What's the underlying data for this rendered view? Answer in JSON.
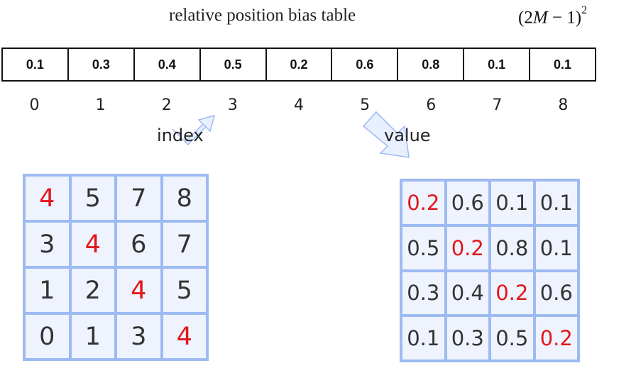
{
  "title": "relative position bias table",
  "formula": {
    "base": "2M − 1",
    "exponent": "2"
  },
  "bias_table": {
    "values": [
      "0.1",
      "0.3",
      "0.4",
      "0.5",
      "0.2",
      "0.6",
      "0.8",
      "0.1",
      "0.1"
    ],
    "indices": [
      "0",
      "1",
      "2",
      "3",
      "4",
      "5",
      "6",
      "7",
      "8"
    ]
  },
  "labels": {
    "index": "index",
    "value": "value"
  },
  "colors": {
    "grid_border": "#9dbaf2",
    "grid_fill": "#eef3fd",
    "highlight": "#e3161b"
  },
  "index_grid": [
    [
      "4",
      "5",
      "7",
      "8"
    ],
    [
      "3",
      "4",
      "6",
      "7"
    ],
    [
      "1",
      "2",
      "4",
      "5"
    ],
    [
      "0",
      "1",
      "3",
      "4"
    ]
  ],
  "value_grid": [
    [
      "0.2",
      "0.6",
      "0.1",
      "0.1"
    ],
    [
      "0.5",
      "0.2",
      "0.8",
      "0.1"
    ],
    [
      "0.3",
      "0.4",
      "0.2",
      "0.6"
    ],
    [
      "0.1",
      "0.3",
      "0.5",
      "0.2"
    ]
  ]
}
